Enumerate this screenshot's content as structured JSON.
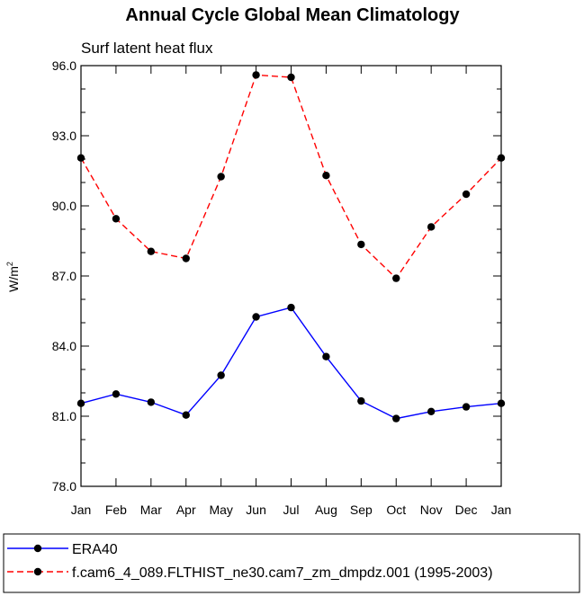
{
  "chart_data": {
    "type": "line",
    "title": "Annual Cycle Global Mean Climatology",
    "subtitle": "Surf latent heat flux",
    "ylabel": "W/m",
    "ylabel_superscript": "2",
    "xlabel": "",
    "ylim": [
      78.0,
      96.0
    ],
    "yticks": [
      78.0,
      81.0,
      84.0,
      87.0,
      90.0,
      93.0,
      96.0
    ],
    "ytick_labels": [
      "78.0",
      "81.0",
      "84.0",
      "87.0",
      "90.0",
      "93.0",
      "96.0"
    ],
    "categories": [
      "Jan",
      "Feb",
      "Mar",
      "Apr",
      "May",
      "Jun",
      "Jul",
      "Aug",
      "Sep",
      "Oct",
      "Nov",
      "Dec",
      "Jan"
    ],
    "grid": false,
    "legend_position": "bottom",
    "series": [
      {
        "name": "ERA40",
        "color": "#0000ff",
        "dash": "solid",
        "values": [
          81.55,
          81.95,
          81.6,
          81.05,
          82.75,
          85.25,
          85.65,
          83.55,
          81.65,
          80.9,
          81.2,
          81.4,
          81.55
        ]
      },
      {
        "name": "f.cam6_4_089.FLTHIST_ne30.cam7_zm_dmpdz.001 (1995-2003)",
        "color": "#ff0000",
        "dash": "dashed",
        "values": [
          92.05,
          89.45,
          88.05,
          87.75,
          91.25,
          95.6,
          95.5,
          91.3,
          88.35,
          86.9,
          89.1,
          90.5,
          92.05
        ]
      }
    ]
  }
}
